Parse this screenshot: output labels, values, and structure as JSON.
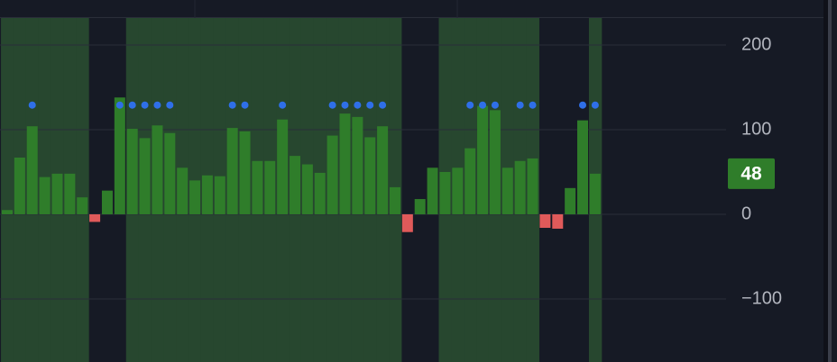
{
  "chart_data": {
    "type": "bar",
    "values": [
      5,
      67,
      104,
      44,
      48,
      48,
      20,
      -9,
      28,
      138,
      101,
      90,
      105,
      96,
      55,
      40,
      46,
      45,
      102,
      98,
      63,
      63,
      112,
      69,
      59,
      49,
      93,
      119,
      115,
      91,
      104,
      32,
      -21,
      18,
      55,
      50,
      55,
      78,
      128,
      123,
      55,
      63,
      66,
      -16,
      -17,
      31,
      111,
      48
    ],
    "signals": [
      null,
      null,
      129,
      null,
      null,
      null,
      null,
      null,
      null,
      129,
      129,
      129,
      129,
      129,
      null,
      null,
      null,
      null,
      129,
      129,
      null,
      null,
      129,
      null,
      null,
      null,
      129,
      129,
      129,
      129,
      129,
      null,
      null,
      null,
      null,
      null,
      null,
      129,
      129,
      129,
      null,
      129,
      129,
      null,
      null,
      null,
      129,
      129
    ],
    "shaded": [
      true,
      true,
      true,
      true,
      true,
      true,
      true,
      false,
      false,
      false,
      true,
      true,
      true,
      true,
      true,
      true,
      true,
      true,
      true,
      true,
      true,
      true,
      true,
      true,
      true,
      true,
      true,
      true,
      true,
      true,
      true,
      true,
      false,
      false,
      false,
      true,
      true,
      true,
      true,
      true,
      true,
      true,
      true,
      false,
      false,
      false,
      false,
      true
    ],
    "positive_color": "#2f7d2a",
    "negative_color": "#e05a5a",
    "signal_color": "#2f6fe8",
    "shade_color": "#27472f",
    "ylim": [
      -174.5,
      231.9
    ],
    "yticks": [
      200,
      100,
      0,
      {
        "value": -100,
        "label": "−100"
      }
    ],
    "grid": true
  }
}
